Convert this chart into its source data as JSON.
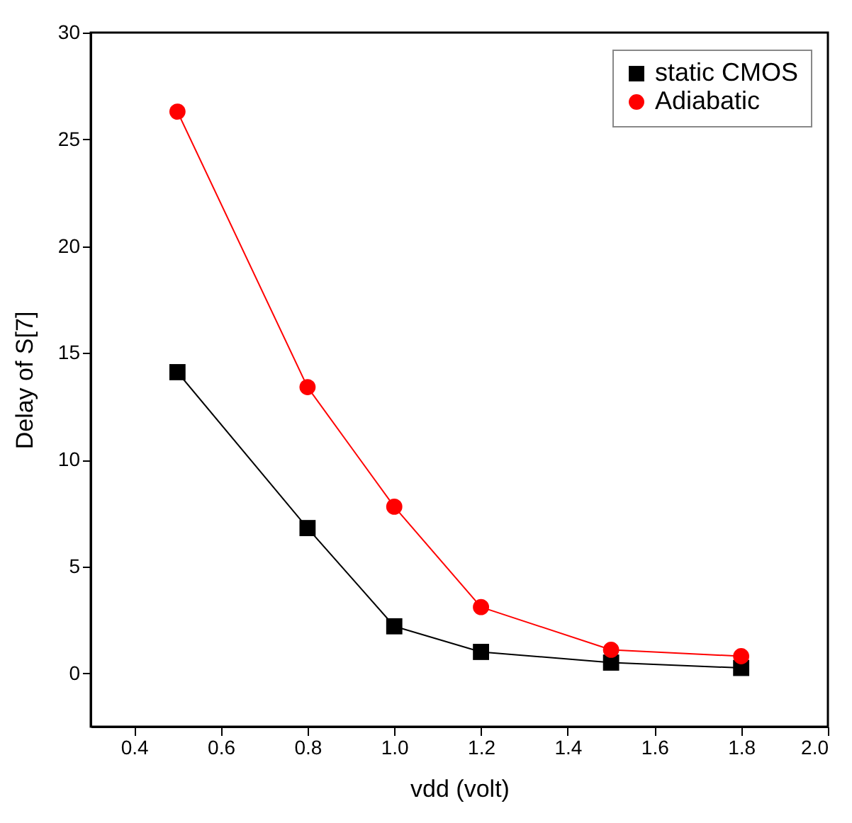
{
  "chart_data": {
    "type": "line",
    "xlabel": "vdd (volt)",
    "ylabel": "Delay of S[7]",
    "x": [
      0.5,
      0.8,
      1.0,
      1.2,
      1.5,
      1.8
    ],
    "series": [
      {
        "name": "static CMOS",
        "color": "#000000",
        "marker": "square",
        "values": [
          14.1,
          6.8,
          2.2,
          1.0,
          0.5,
          0.25
        ]
      },
      {
        "name": "Adiabatic",
        "color": "#ff0000",
        "marker": "circle",
        "values": [
          26.3,
          13.4,
          7.8,
          3.1,
          1.1,
          0.8
        ]
      }
    ],
    "xlim": [
      0.3,
      2.0
    ],
    "xticks": [
      0.4,
      0.6,
      0.8,
      {
        "value": 1.0,
        "label": "1.0"
      },
      1.2,
      1.4,
      1.6,
      1.8,
      {
        "value": 2.0,
        "label": "2.0"
      }
    ],
    "ylim": [
      -2.5,
      30
    ],
    "yticks": [
      0,
      5,
      10,
      15,
      20,
      25,
      30
    ],
    "grid": false,
    "legend": "top right",
    "line_style": "solid"
  }
}
